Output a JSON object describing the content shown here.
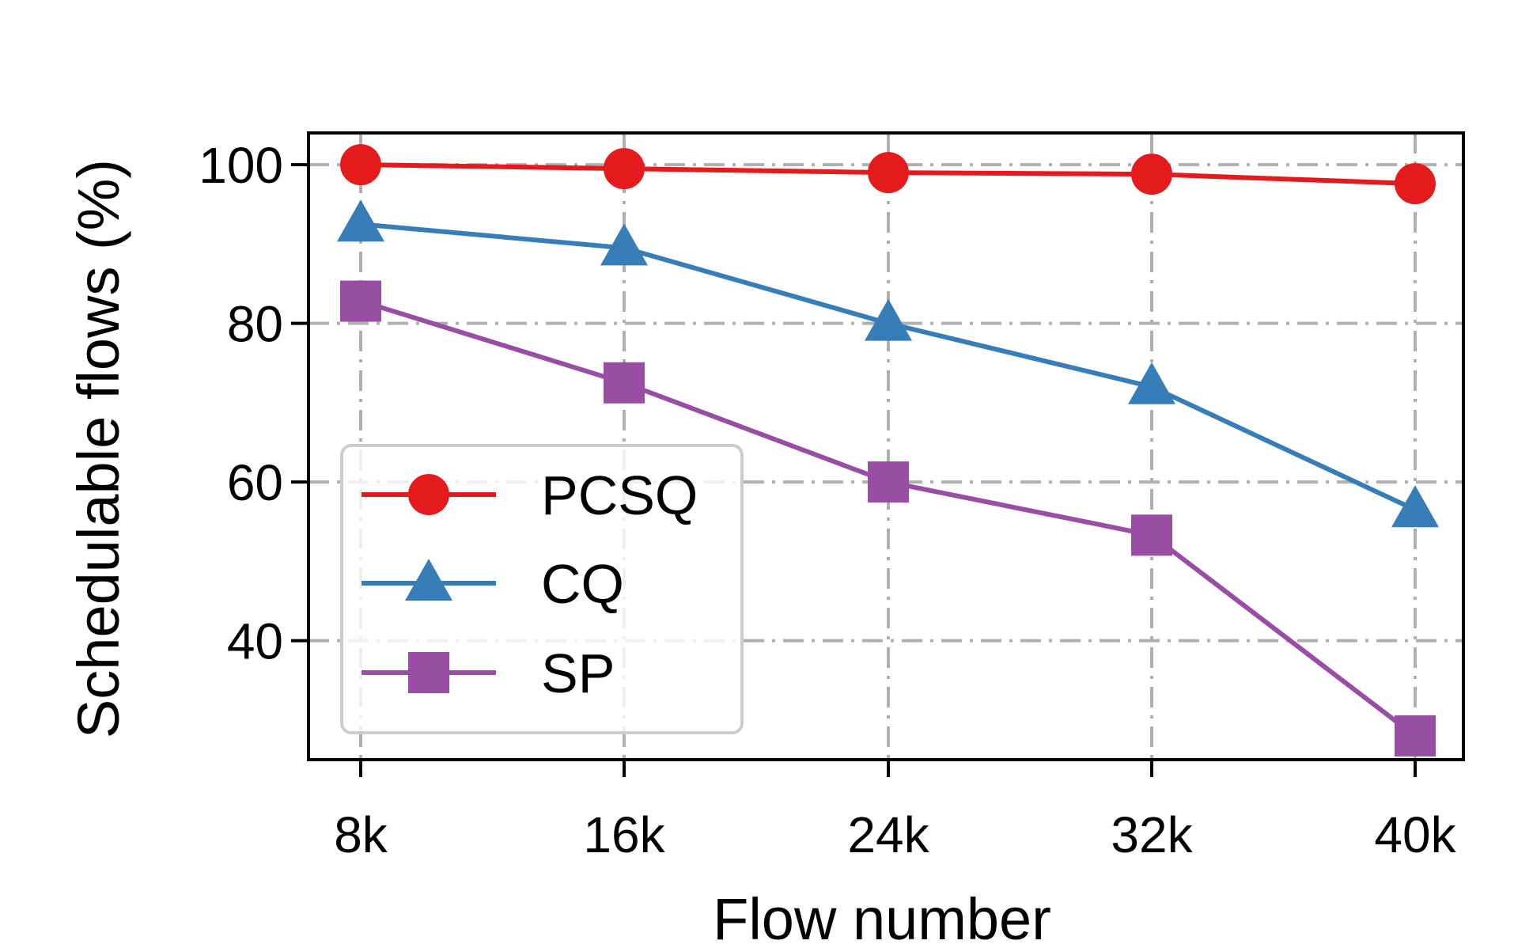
{
  "chart_data": {
    "type": "line",
    "title": "",
    "xlabel": "Flow number",
    "ylabel": "Schedulable flows (%)",
    "categories": [
      "8k",
      "16k",
      "24k",
      "32k",
      "40k"
    ],
    "ylim": [
      25,
      104
    ],
    "yticks": [
      40,
      60,
      80,
      100
    ],
    "grid": true,
    "legend_position": "lower-left",
    "series": [
      {
        "name": "PCSQ",
        "color": "#e41a1c",
        "marker": "circle",
        "values": [
          100.0,
          99.5,
          99.0,
          98.8,
          97.6
        ]
      },
      {
        "name": "CQ",
        "color": "#377eb8",
        "marker": "triangle",
        "values": [
          92.5,
          89.5,
          80.0,
          72.0,
          56.5
        ]
      },
      {
        "name": "SP",
        "color": "#984ea3",
        "marker": "square",
        "values": [
          82.8,
          72.5,
          60.0,
          53.3,
          28.0
        ]
      }
    ]
  }
}
